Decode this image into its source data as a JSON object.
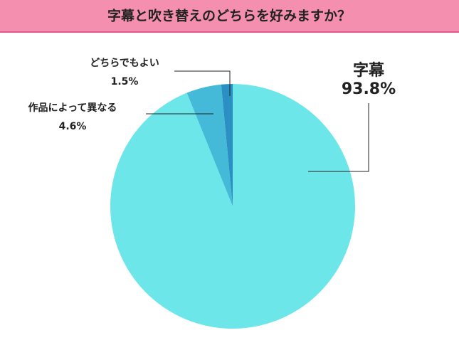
{
  "chart_data": {
    "type": "pie",
    "title": "字幕と吹き替えのどちらを好みますか？",
    "categories": [
      "字幕",
      "作品によって異なる",
      "どちらでもよい"
    ],
    "values": [
      93.8,
      4.6,
      1.5
    ],
    "value_labels": [
      "93.8%",
      "4.6%",
      "1.5%"
    ],
    "colors": [
      "#6de6ea",
      "#45b9d8",
      "#2a8fc2"
    ]
  }
}
